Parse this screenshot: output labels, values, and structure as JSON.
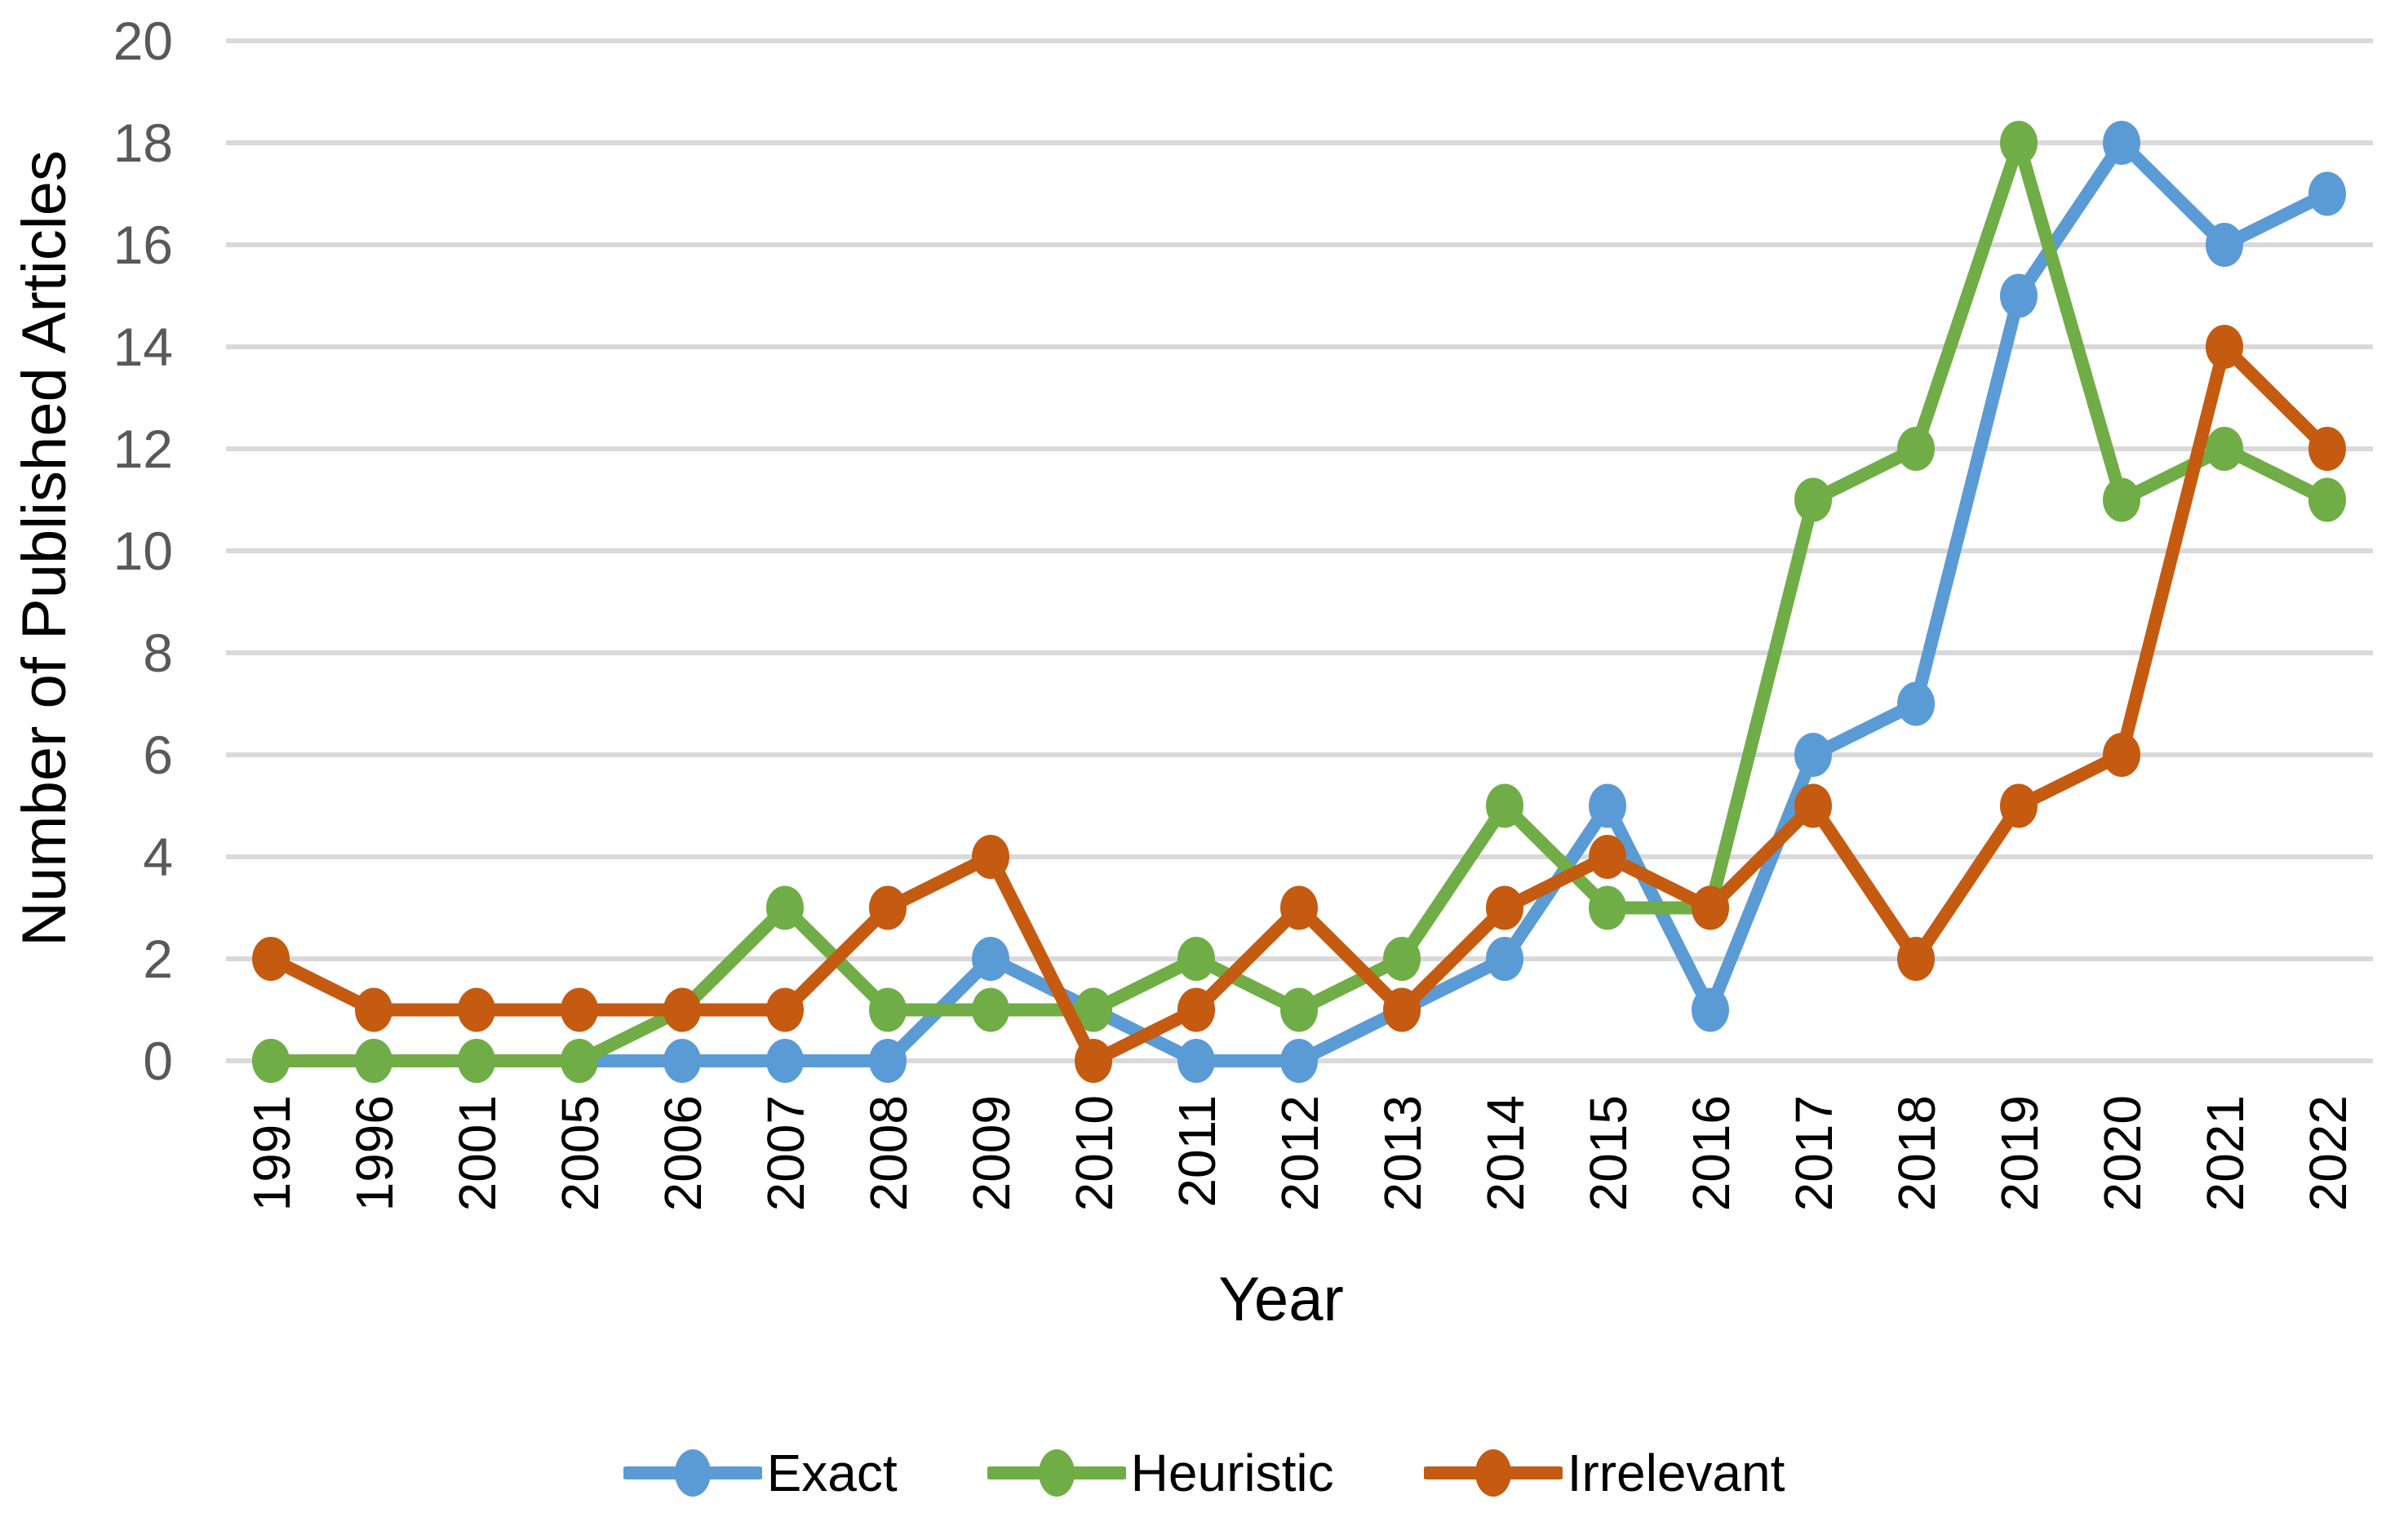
{
  "chart_data": {
    "type": "line",
    "title": "",
    "xlabel": "Year",
    "ylabel": "Number of Published Articles",
    "categories": [
      "1991",
      "1996",
      "2001",
      "2005",
      "2006",
      "2007",
      "2008",
      "2009",
      "2010",
      "2011",
      "2012",
      "2013",
      "2014",
      "2015",
      "2016",
      "2017",
      "2018",
      "2019",
      "2020",
      "2021",
      "2022"
    ],
    "series": [
      {
        "name": "Exact",
        "color": "#5B9BD5",
        "values": [
          0,
          0,
          0,
          0,
          0,
          0,
          0,
          2,
          1,
          0,
          0,
          1,
          2,
          5,
          1,
          6,
          7,
          15,
          18,
          16,
          17
        ]
      },
      {
        "name": "Heuristic",
        "color": "#70AD47",
        "values": [
          0,
          0,
          0,
          0,
          1,
          3,
          1,
          1,
          1,
          2,
          1,
          2,
          5,
          3,
          3,
          11,
          12,
          18,
          11,
          12,
          11
        ]
      },
      {
        "name": "Irrelevant",
        "color": "#C55A11",
        "values": [
          2,
          1,
          1,
          1,
          1,
          1,
          3,
          4,
          0,
          1,
          3,
          1,
          3,
          4,
          3,
          5,
          2,
          5,
          6,
          14,
          12
        ]
      }
    ],
    "ylim": [
      0,
      20
    ],
    "ytick_step": 2,
    "yticks": [
      "0",
      "2",
      "4",
      "6",
      "8",
      "10",
      "12",
      "14",
      "16",
      "18",
      "20"
    ],
    "grid": true,
    "legend_position": "bottom",
    "styles": {
      "gridline_color": "#D9D9D9",
      "tick_label_color": "#595959",
      "x_tick_label_color": "#000000",
      "axis_title_color": "#000000",
      "background": "#FFFFFF",
      "line_width": 16,
      "marker": "circle"
    }
  }
}
